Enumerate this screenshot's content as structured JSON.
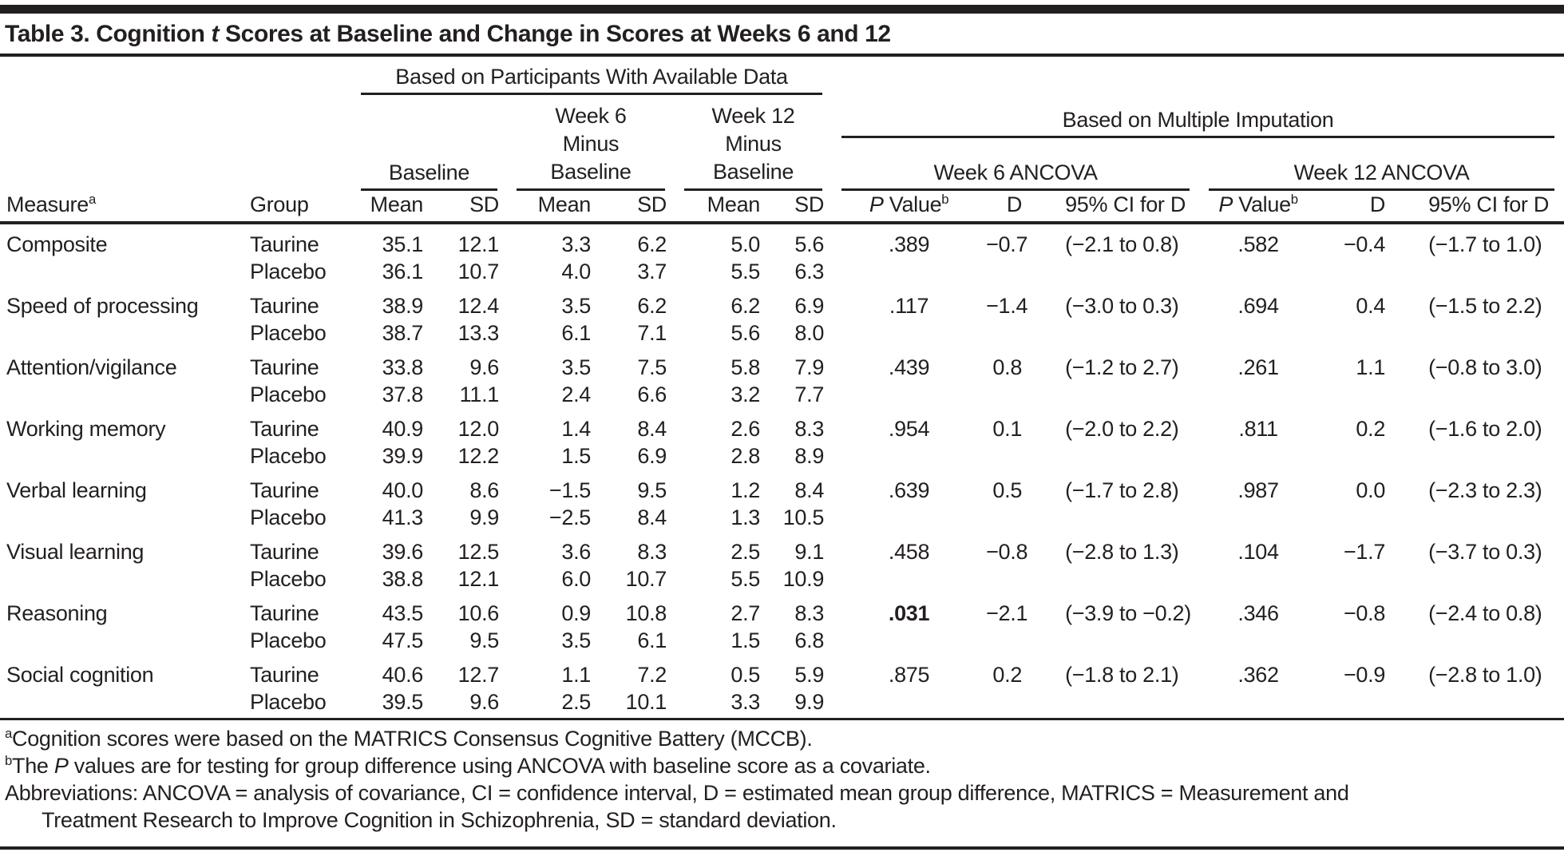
{
  "title": {
    "pre": "Table 3. Cognition ",
    "italic": "t",
    "post": " Scores at Baseline and Change in Scores at Weeks 6 and 12"
  },
  "header": {
    "available_data": "Based on Participants With Available Data",
    "multiple_imputation": "Based on Multiple Imputation",
    "baseline": "Baseline",
    "week6_minus": [
      "Week 6",
      "Minus",
      "Baseline"
    ],
    "week12_minus": [
      "Week 12",
      "Minus",
      "Baseline"
    ],
    "week6_ancova": "Week 6 ANCOVA",
    "week12_ancova": "Week 12 ANCOVA",
    "measure": "Measure",
    "measure_sup": "a",
    "group": "Group",
    "mean": "Mean",
    "sd": "SD",
    "p_italic": "P",
    "p_value": " Value",
    "p_sup": "b",
    "d": "D",
    "ci": "95% CI for D"
  },
  "rows": [
    {
      "first": true,
      "measure": "Composite",
      "group": "Taurine",
      "bm": "35.1",
      "bs": "12.1",
      "m6": "3.3",
      "s6": "6.2",
      "m12": "5.0",
      "s12": "5.6",
      "p6": ".389",
      "p6bold": false,
      "d6": "−0.7",
      "ci6": "(−2.1 to 0.8)",
      "p12": ".582",
      "d12": "−0.4",
      "ci12": "(−1.7 to 1.0)"
    },
    {
      "first": false,
      "measure": "",
      "group": "Placebo",
      "bm": "36.1",
      "bs": "10.7",
      "m6": "4.0",
      "s6": "3.7",
      "m12": "5.5",
      "s12": "6.3",
      "p6": "",
      "p6bold": false,
      "d6": "",
      "ci6": "",
      "p12": "",
      "d12": "",
      "ci12": ""
    },
    {
      "first": true,
      "measure": "Speed of processing",
      "group": "Taurine",
      "bm": "38.9",
      "bs": "12.4",
      "m6": "3.5",
      "s6": "6.2",
      "m12": "6.2",
      "s12": "6.9",
      "p6": ".117",
      "p6bold": false,
      "d6": "−1.4",
      "ci6": "(−3.0 to 0.3)",
      "p12": ".694",
      "d12": "0.4",
      "ci12": "(−1.5 to 2.2)"
    },
    {
      "first": false,
      "measure": "",
      "group": "Placebo",
      "bm": "38.7",
      "bs": "13.3",
      "m6": "6.1",
      "s6": "7.1",
      "m12": "5.6",
      "s12": "8.0",
      "p6": "",
      "p6bold": false,
      "d6": "",
      "ci6": "",
      "p12": "",
      "d12": "",
      "ci12": ""
    },
    {
      "first": true,
      "measure": "Attention/vigilance",
      "group": "Taurine",
      "bm": "33.8",
      "bs": "9.6",
      "m6": "3.5",
      "s6": "7.5",
      "m12": "5.8",
      "s12": "7.9",
      "p6": ".439",
      "p6bold": false,
      "d6": "0.8",
      "ci6": "(−1.2 to 2.7)",
      "p12": ".261",
      "d12": "1.1",
      "ci12": "(−0.8 to 3.0)"
    },
    {
      "first": false,
      "measure": "",
      "group": "Placebo",
      "bm": "37.8",
      "bs": "11.1",
      "m6": "2.4",
      "s6": "6.6",
      "m12": "3.2",
      "s12": "7.7",
      "p6": "",
      "p6bold": false,
      "d6": "",
      "ci6": "",
      "p12": "",
      "d12": "",
      "ci12": ""
    },
    {
      "first": true,
      "measure": "Working memory",
      "group": "Taurine",
      "bm": "40.9",
      "bs": "12.0",
      "m6": "1.4",
      "s6": "8.4",
      "m12": "2.6",
      "s12": "8.3",
      "p6": ".954",
      "p6bold": false,
      "d6": "0.1",
      "ci6": "(−2.0 to 2.2)",
      "p12": ".811",
      "d12": "0.2",
      "ci12": "(−1.6 to 2.0)"
    },
    {
      "first": false,
      "measure": "",
      "group": "Placebo",
      "bm": "39.9",
      "bs": "12.2",
      "m6": "1.5",
      "s6": "6.9",
      "m12": "2.8",
      "s12": "8.9",
      "p6": "",
      "p6bold": false,
      "d6": "",
      "ci6": "",
      "p12": "",
      "d12": "",
      "ci12": ""
    },
    {
      "first": true,
      "measure": "Verbal learning",
      "group": "Taurine",
      "bm": "40.0",
      "bs": "8.6",
      "m6": "−1.5",
      "s6": "9.5",
      "m12": "1.2",
      "s12": "8.4",
      "p6": ".639",
      "p6bold": false,
      "d6": "0.5",
      "ci6": "(−1.7 to 2.8)",
      "p12": ".987",
      "d12": "0.0",
      "ci12": "(−2.3 to 2.3)"
    },
    {
      "first": false,
      "measure": "",
      "group": "Placebo",
      "bm": "41.3",
      "bs": "9.9",
      "m6": "−2.5",
      "s6": "8.4",
      "m12": "1.3",
      "s12": "10.5",
      "p6": "",
      "p6bold": false,
      "d6": "",
      "ci6": "",
      "p12": "",
      "d12": "",
      "ci12": ""
    },
    {
      "first": true,
      "measure": "Visual learning",
      "group": "Taurine",
      "bm": "39.6",
      "bs": "12.5",
      "m6": "3.6",
      "s6": "8.3",
      "m12": "2.5",
      "s12": "9.1",
      "p6": ".458",
      "p6bold": false,
      "d6": "−0.8",
      "ci6": "(−2.8 to 1.3)",
      "p12": ".104",
      "d12": "−1.7",
      "ci12": "(−3.7 to 0.3)"
    },
    {
      "first": false,
      "measure": "",
      "group": "Placebo",
      "bm": "38.8",
      "bs": "12.1",
      "m6": "6.0",
      "s6": "10.7",
      "m12": "5.5",
      "s12": "10.9",
      "p6": "",
      "p6bold": false,
      "d6": "",
      "ci6": "",
      "p12": "",
      "d12": "",
      "ci12": ""
    },
    {
      "first": true,
      "measure": "Reasoning",
      "group": "Taurine",
      "bm": "43.5",
      "bs": "10.6",
      "m6": "0.9",
      "s6": "10.8",
      "m12": "2.7",
      "s12": "8.3",
      "p6": ".031",
      "p6bold": true,
      "d6": "−2.1",
      "ci6": "(−3.9 to −0.2)",
      "p12": ".346",
      "d12": "−0.8",
      "ci12": "(−2.4 to 0.8)"
    },
    {
      "first": false,
      "measure": "",
      "group": "Placebo",
      "bm": "47.5",
      "bs": "9.5",
      "m6": "3.5",
      "s6": "6.1",
      "m12": "1.5",
      "s12": "6.8",
      "p6": "",
      "p6bold": false,
      "d6": "",
      "ci6": "",
      "p12": "",
      "d12": "",
      "ci12": ""
    },
    {
      "first": true,
      "measure": "Social cognition",
      "group": "Taurine",
      "bm": "40.6",
      "bs": "12.7",
      "m6": "1.1",
      "s6": "7.2",
      "m12": "0.5",
      "s12": "5.9",
      "p6": ".875",
      "p6bold": false,
      "d6": "0.2",
      "ci6": "(−1.8 to 2.1)",
      "p12": ".362",
      "d12": "−0.9",
      "ci12": "(−2.8 to 1.0)"
    },
    {
      "first": false,
      "measure": "",
      "group": "Placebo",
      "bm": "39.5",
      "bs": "9.6",
      "m6": "2.5",
      "s6": "10.1",
      "m12": "3.3",
      "s12": "9.9",
      "p6": "",
      "p6bold": false,
      "d6": "",
      "ci6": "",
      "p12": "",
      "d12": "",
      "ci12": ""
    }
  ],
  "footnotes": {
    "a_sup": "a",
    "a_text": "Cognition scores were based on the MATRICS Consensus Cognitive Battery (MCCB).",
    "b_sup": "b",
    "b_pre": "The ",
    "b_italic": "P",
    "b_post": " values are for testing for group difference using ANCOVA with baseline score as a covariate.",
    "abbrev_line1": "Abbreviations: ANCOVA = analysis of covariance, CI = confidence interval, D = estimated mean group difference, MATRICS = Measurement and",
    "abbrev_line2": "Treatment Research to Improve Cognition in Schizophrenia, SD = standard deviation."
  },
  "colors": {
    "text": "#231f20",
    "rule": "#231f20",
    "background": "#ffffff"
  }
}
